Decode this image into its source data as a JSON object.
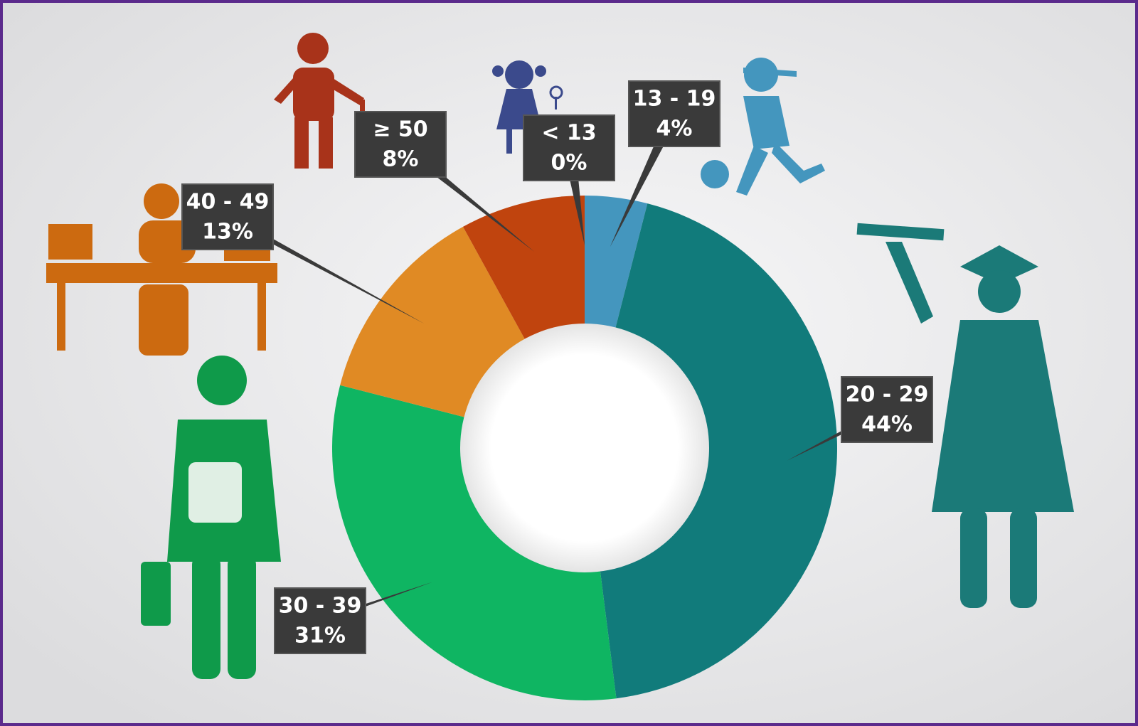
{
  "chart_data": {
    "type": "donut",
    "categories": [
      "< 13",
      "13 - 19",
      "20 - 29",
      "30 - 39",
      "40 - 49",
      "≥ 50"
    ],
    "values": [
      0,
      4,
      44,
      31,
      13,
      8
    ],
    "value_labels": [
      "0%",
      "4%",
      "44%",
      "31%",
      "13%",
      "8%"
    ],
    "colors": [
      "#3b4a8c",
      "#4496be",
      "#117b7b",
      "#0fb562",
      "#e08a24",
      "#c0440e"
    ]
  }
}
